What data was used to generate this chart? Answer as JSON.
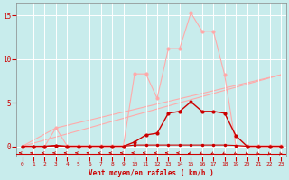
{
  "xlabel": "Vent moyen/en rafales ( km/h )",
  "background_color": "#c8ecec",
  "grid_color": "#ffffff",
  "xlim": [
    -0.5,
    23.5
  ],
  "ylim": [
    -1.2,
    16.5
  ],
  "yticks": [
    0,
    5,
    10,
    15
  ],
  "xticks": [
    0,
    1,
    2,
    3,
    4,
    5,
    6,
    7,
    8,
    9,
    10,
    11,
    12,
    13,
    14,
    15,
    16,
    17,
    18,
    19,
    20,
    21,
    22,
    23
  ],
  "line_rafales_x": [
    0,
    1,
    2,
    3,
    4,
    5,
    6,
    7,
    8,
    9,
    10,
    11,
    12,
    13,
    14,
    15,
    16,
    17,
    18,
    19,
    20,
    21,
    22,
    23
  ],
  "line_rafales_y": [
    0,
    0,
    0,
    2.1,
    0.05,
    0.05,
    0.05,
    0.05,
    0.05,
    0.05,
    8.3,
    8.3,
    5.5,
    11.2,
    11.2,
    15.3,
    13.2,
    13.2,
    8.2,
    0.05,
    0.05,
    0.05,
    0.05,
    0.05
  ],
  "line_trend1_x": [
    0,
    23
  ],
  "line_trend1_y": [
    0,
    8.2
  ],
  "line_trend2_x": [
    0,
    3,
    23
  ],
  "line_trend2_y": [
    0,
    2.1,
    8.2
  ],
  "line_moyen_x": [
    0,
    1,
    2,
    3,
    4,
    5,
    6,
    7,
    8,
    9,
    10,
    11,
    12,
    13,
    14,
    15,
    16,
    17,
    18,
    19,
    20,
    21,
    22,
    23
  ],
  "line_moyen_y": [
    0,
    0,
    0,
    0.1,
    0,
    0,
    0,
    0,
    0,
    0,
    0.5,
    1.3,
    1.5,
    3.8,
    4.0,
    5.1,
    4.0,
    4.0,
    3.8,
    1.2,
    0,
    0,
    0,
    0
  ],
  "line_flat_x": [
    0,
    1,
    2,
    3,
    4,
    5,
    6,
    7,
    8,
    9,
    10,
    11,
    12,
    13,
    14,
    15,
    16,
    17,
    18,
    19,
    20,
    21,
    22,
    23
  ],
  "line_flat_y": [
    0,
    0,
    0,
    0.05,
    0,
    0,
    0,
    0,
    0,
    0,
    0.15,
    0.15,
    0.15,
    0.15,
    0.15,
    0.15,
    0.15,
    0.15,
    0.15,
    0.1,
    0,
    0,
    0,
    0
  ],
  "color_light": "#ffaaaa",
  "color_dark": "#cc0000",
  "arrows_x": [
    0,
    1,
    2,
    3,
    4,
    5,
    6,
    7,
    8,
    9,
    10,
    11,
    12,
    13,
    14,
    15,
    16,
    17,
    18,
    19,
    20,
    21,
    22,
    23
  ],
  "arrows_angle": [
    180,
    180,
    180,
    180,
    180,
    180,
    180,
    180,
    180,
    180,
    180,
    180,
    180,
    180,
    180,
    200,
    210,
    215,
    220,
    225,
    230,
    235,
    240,
    245
  ]
}
